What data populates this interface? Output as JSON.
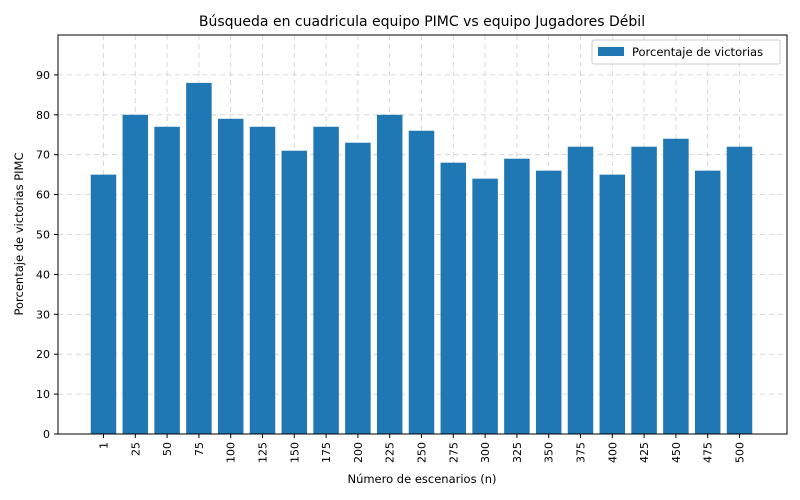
{
  "chart_data": {
    "type": "bar",
    "title": "Búsqueda en cuadricula equipo PIMC vs equipo Jugadores Débil",
    "xlabel": "Número de escenarios (n)",
    "ylabel": "Porcentaje de victorias PIMC",
    "categories": [
      "1",
      "25",
      "50",
      "75",
      "100",
      "125",
      "150",
      "175",
      "200",
      "225",
      "250",
      "275",
      "300",
      "325",
      "350",
      "375",
      "400",
      "425",
      "450",
      "475",
      "500"
    ],
    "series": [
      {
        "name": "Porcentaje de victorias",
        "color": "#1f77b4",
        "values": [
          65,
          80,
          77,
          88,
          79,
          77,
          71,
          77,
          73,
          80,
          76,
          68,
          64,
          69,
          66,
          72,
          65,
          72,
          74,
          66,
          72
        ]
      }
    ],
    "ylim": [
      0,
      100
    ],
    "yticks": [
      0,
      10,
      20,
      30,
      40,
      50,
      60,
      70,
      80,
      90
    ],
    "grid": true,
    "legend_position": "top-right",
    "x_tick_rotation": 90
  }
}
